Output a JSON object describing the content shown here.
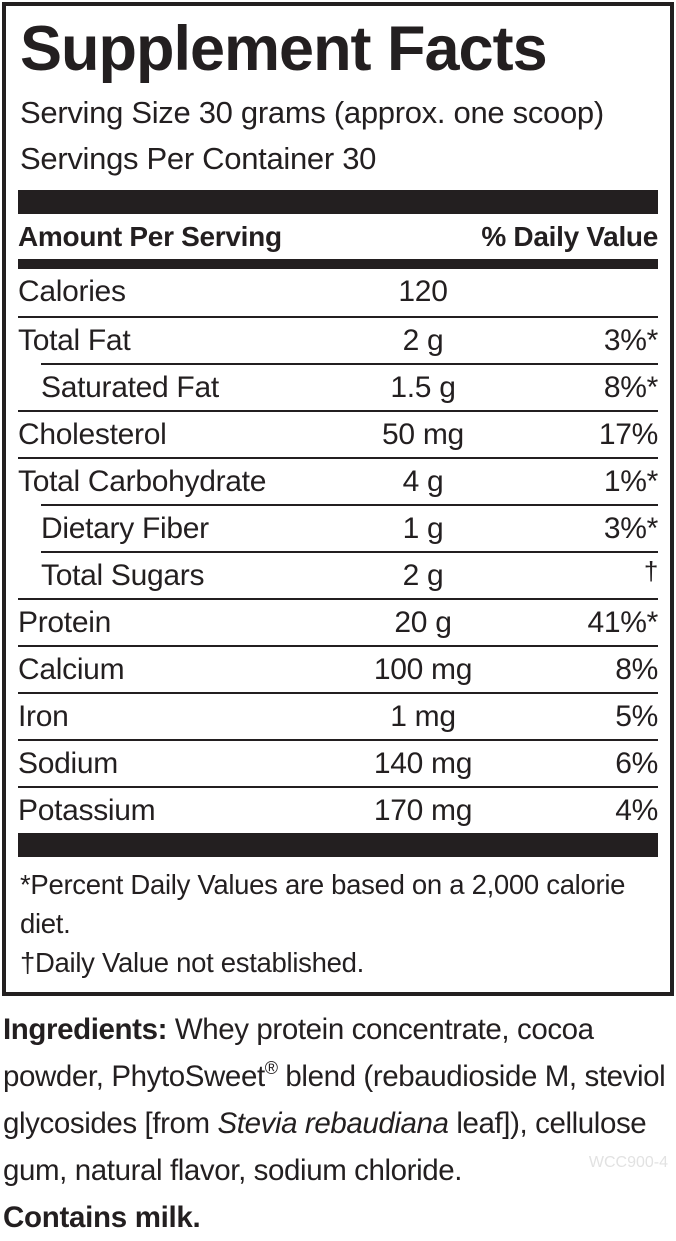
{
  "colors": {
    "ink": "#231f20",
    "background": "#ffffff",
    "product_code_gray": "#e2e2e2"
  },
  "panel": {
    "title": "Supplement Facts",
    "serving_size": "Serving Size 30 grams (approx. one scoop)",
    "servings_per_container": "Servings Per Container 30",
    "columns": {
      "amount": "Amount Per Serving",
      "daily_value": "% Daily Value"
    },
    "rows": [
      {
        "name": "Calories",
        "amount": "120",
        "daily_value": ""
      },
      {
        "name": "Total Fat",
        "amount": "2 g",
        "daily_value": "3%*"
      },
      {
        "name": "Saturated Fat",
        "amount": "1.5 g",
        "daily_value": "8%*"
      },
      {
        "name": "Cholesterol",
        "amount": "50 mg",
        "daily_value": "17%"
      },
      {
        "name": "Total Carbohydrate",
        "amount": "4 g",
        "daily_value": "1%*"
      },
      {
        "name": "Dietary Fiber",
        "amount": "1 g",
        "daily_value": "3%*"
      },
      {
        "name": "Total Sugars",
        "amount": "2 g",
        "daily_value": "†"
      },
      {
        "name": "Protein",
        "amount": "20 g",
        "daily_value": "41%*"
      },
      {
        "name": "Calcium",
        "amount": "100 mg",
        "daily_value": "8%"
      },
      {
        "name": "Iron",
        "amount": "1 mg",
        "daily_value": "5%"
      },
      {
        "name": "Sodium",
        "amount": "140 mg",
        "daily_value": "6%"
      },
      {
        "name": "Potassium",
        "amount": "170 mg",
        "daily_value": "4%"
      }
    ],
    "footnotes": [
      "*Percent Daily Values are based on a 2,000 calorie diet.",
      "†Daily Value not established."
    ]
  },
  "ingredients": {
    "heading": "Ingredients:",
    "part1": " Whey protein concentrate, cocoa powder, PhytoSweet",
    "registered_mark": "®",
    "part2": " blend (rebaudioside M, steviol glycosides [from ",
    "botanical_name": "Stevia rebaudiana",
    "part3": " leaf]), cellulose gum, natural flavor, sodium chloride."
  },
  "allergen_statement": "Contains milk.",
  "product_code": "WCC900-4"
}
